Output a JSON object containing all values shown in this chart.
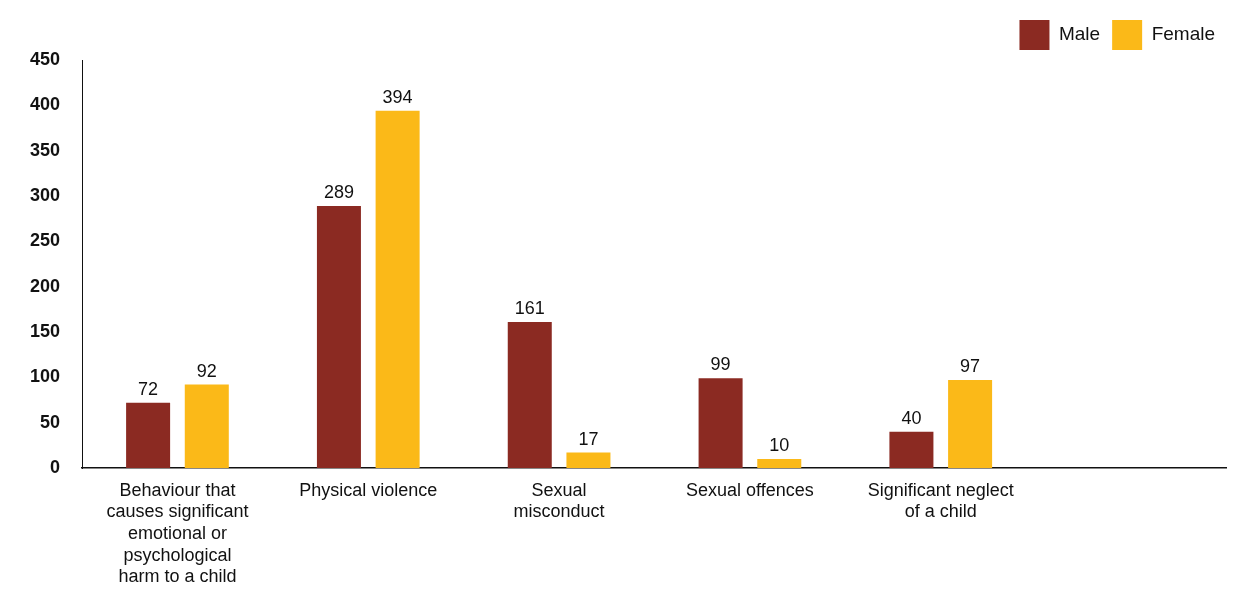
{
  "chart_data": {
    "type": "bar",
    "categories": [
      "Behaviour that causes significant emotional or psychological harm to a child",
      "Physical violence",
      "Sexual misconduct",
      "Sexual offences",
      "Significant neglect of a child",
      null
    ],
    "series": [
      {
        "name": "Male",
        "color": "#8b2a22",
        "values": [
          72,
          289,
          161,
          99,
          40,
          null
        ]
      },
      {
        "name": "Female",
        "color": "#fbb918",
        "values": [
          92,
          394,
          17,
          10,
          97,
          null
        ]
      }
    ],
    "ylim": [
      0,
      450
    ],
    "yticks": [
      0,
      50,
      100,
      150,
      200,
      250,
      300,
      350,
      400,
      450
    ],
    "grid": false,
    "legend": "top right",
    "data_labels": true
  }
}
